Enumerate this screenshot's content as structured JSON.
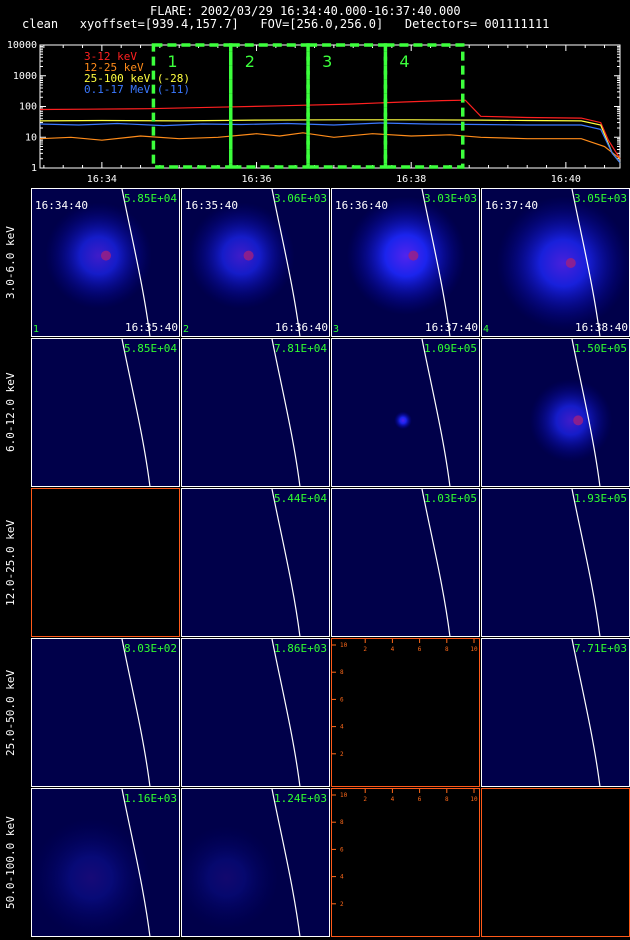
{
  "header": {
    "line1": "FLARE: 2002/03/29 16:34:40.000-16:37:40.000",
    "line2": "clean   xyoffset=[939.4,157.7]   FOV=[256.0,256.0]   Detectors= 001111111"
  },
  "chart_data": [
    {
      "type": "line",
      "title": "",
      "y_scale": "log",
      "ylim": [
        1,
        10000
      ],
      "y_ticks": [
        "1",
        "10",
        "100",
        "1000",
        "10000"
      ],
      "x_ticks": [
        "16:34",
        "16:36",
        "16:38",
        "16:40"
      ],
      "xlim_minutes": [
        33.2,
        40.7
      ],
      "series": [
        {
          "name": "3-12 keV",
          "color": "#ff2020",
          "x": [
            33.2,
            33.8,
            34.6,
            35.5,
            36.3,
            37.2,
            37.9,
            38.4,
            38.7,
            38.9,
            39.5,
            40.2,
            40.45,
            40.55,
            40.7
          ],
          "y": [
            80,
            82,
            85,
            95,
            105,
            120,
            140,
            155,
            160,
            48,
            44,
            42,
            30,
            8,
            2
          ]
        },
        {
          "name": "12-25 keV",
          "color": "#ff8c1a",
          "x": [
            33.2,
            33.6,
            34.0,
            34.5,
            35.0,
            35.5,
            36.0,
            36.3,
            36.6,
            37.0,
            37.5,
            38.0,
            38.5,
            38.9,
            39.5,
            40.2,
            40.5,
            40.7
          ],
          "y": [
            9,
            10,
            8,
            11,
            9,
            10,
            13,
            11,
            14,
            10,
            13,
            11,
            12,
            10,
            9,
            9,
            5,
            2
          ]
        },
        {
          "name": "25-100 keV (-28)",
          "color": "#ffff40",
          "x": [
            33.2,
            34.0,
            35.0,
            36.0,
            37.0,
            38.0,
            38.9,
            39.5,
            40.2,
            40.45,
            40.6,
            40.7
          ],
          "y": [
            34,
            35,
            34,
            36,
            37,
            37,
            36,
            35,
            34,
            25,
            3,
            1.5
          ]
        },
        {
          "name": "0.1-17 MeV (-11)",
          "color": "#3a78ff",
          "x": [
            33.2,
            33.7,
            34.2,
            34.8,
            35.3,
            35.8,
            36.4,
            37.0,
            37.6,
            38.2,
            38.9,
            39.5,
            40.2,
            40.45,
            40.6,
            40.7
          ],
          "y": [
            27,
            25,
            28,
            24,
            27,
            26,
            28,
            25,
            29,
            27,
            26,
            25,
            25,
            18,
            3,
            1.5
          ]
        }
      ],
      "time_intervals": [
        {
          "label": "1",
          "start": "16:34:40",
          "end": "16:35:40"
        },
        {
          "label": "2",
          "start": "16:35:40",
          "end": "16:36:40"
        },
        {
          "label": "3",
          "start": "16:36:40",
          "end": "16:37:40"
        },
        {
          "label": "4",
          "start": "16:37:40",
          "end": "16:38:40"
        }
      ]
    },
    {
      "type": "heatmap",
      "rows": [
        "3.0-6.0 keV",
        "6.0-12.0 keV",
        "12.0-25.0 keV",
        "25.0-50.0 keV",
        "50.0-100.0 keV"
      ],
      "cells": [
        [
          {
            "state": "image",
            "peak": "5.85E+04",
            "start": "16:34:40",
            "end": "16:35:40",
            "num": "1",
            "sources": [
              {
                "x": 0.45,
                "y": 0.45,
                "r": 0.36,
                "b": 0.7
              }
            ]
          },
          {
            "state": "image",
            "peak": "3.06E+03",
            "start": "16:35:40",
            "end": "16:36:40",
            "num": "2",
            "sources": [
              {
                "x": 0.4,
                "y": 0.45,
                "r": 0.36,
                "b": 0.7
              }
            ]
          },
          {
            "state": "image",
            "peak": "3.03E+03",
            "start": "16:36:40",
            "end": "16:37:40",
            "num": "3",
            "sources": [
              {
                "x": 0.5,
                "y": 0.45,
                "r": 0.4,
                "b": 0.9
              }
            ]
          },
          {
            "state": "image",
            "peak": "3.05E+03",
            "start": "16:37:40",
            "end": "16:38:40",
            "num": "4",
            "sources": [
              {
                "x": 0.55,
                "y": 0.5,
                "r": 0.45,
                "b": 0.8
              }
            ]
          }
        ],
        [
          {
            "state": "image",
            "peak": "5.85E+04",
            "sources": []
          },
          {
            "state": "image",
            "peak": "7.81E+04",
            "sources": []
          },
          {
            "state": "image",
            "peak": "1.09E+05",
            "sources": [
              {
                "x": 0.48,
                "y": 0.55,
                "r": 0.06,
                "b": 0.9
              }
            ]
          },
          {
            "state": "image",
            "peak": "1.50E+05",
            "sources": [
              {
                "x": 0.6,
                "y": 0.55,
                "r": 0.28,
                "b": 0.7
              }
            ]
          }
        ],
        [
          {
            "state": "empty"
          },
          {
            "state": "image",
            "peak": "5.44E+04",
            "sources": []
          },
          {
            "state": "image",
            "peak": "1.03E+05",
            "sources": []
          },
          {
            "state": "image",
            "peak": "1.93E+05",
            "sources": []
          }
        ],
        [
          {
            "state": "image",
            "peak": "8.03E+02",
            "sources": []
          },
          {
            "state": "image",
            "peak": "1.86E+03",
            "sources": []
          },
          {
            "state": "empty_axes"
          },
          {
            "state": "image",
            "peak": "7.71E+03",
            "sources": []
          }
        ],
        [
          {
            "state": "image",
            "peak": "1.16E+03",
            "sources": [
              {
                "x": 0.4,
                "y": 0.6,
                "r": 0.4,
                "b": 0.25
              }
            ]
          },
          {
            "state": "image",
            "peak": "1.24E+03",
            "sources": [
              {
                "x": 0.3,
                "y": 0.6,
                "r": 0.35,
                "b": 0.2
              }
            ]
          },
          {
            "state": "empty_axes"
          },
          {
            "state": "empty"
          }
        ]
      ],
      "empty_axis_ticks": [
        "2",
        "4",
        "6",
        "8",
        "10"
      ]
    }
  ]
}
